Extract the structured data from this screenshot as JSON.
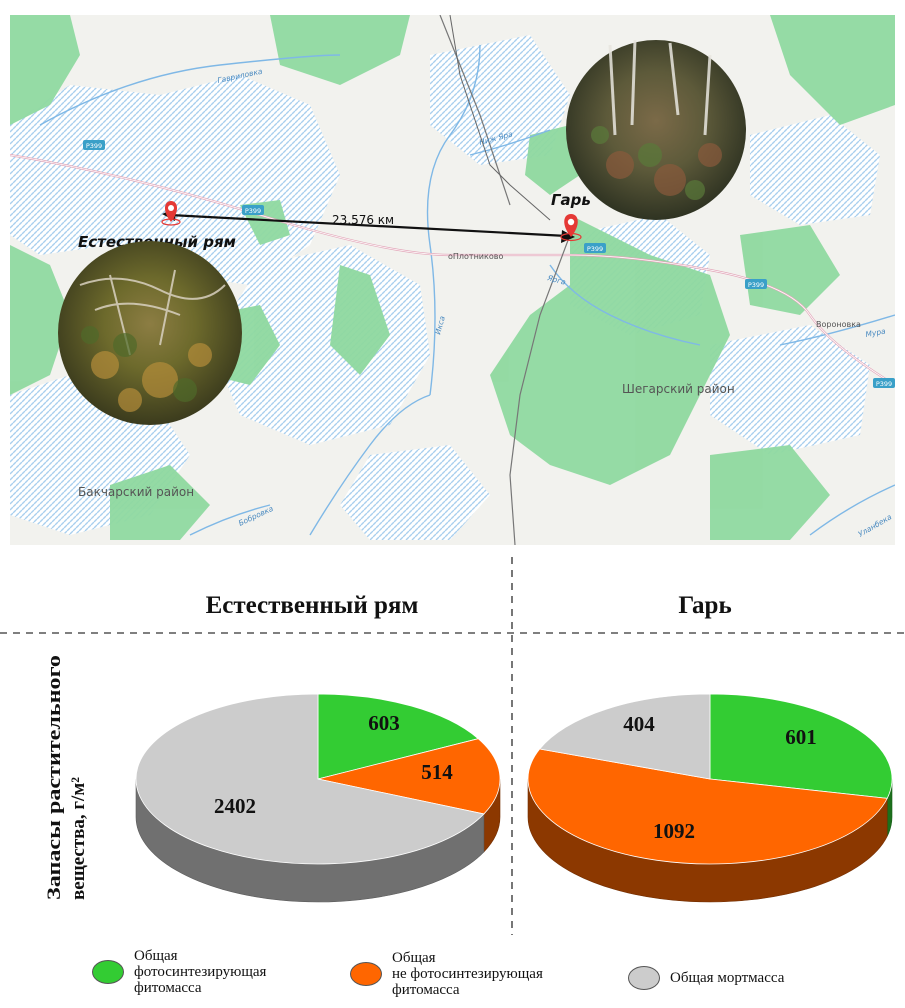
{
  "map": {
    "site_natural": "Естественный рям",
    "site_burn": "Гарь",
    "distance": "23,576 км",
    "place_labels": {
      "plotnikovo": "оПлотниково",
      "voronovka": "Вороновка",
      "shegarsky": "Шегарский район",
      "bakcharsky": "Бакчарский район"
    },
    "river_labels": {
      "gavrilovka": "Гавриловка",
      "nizh_yara": "Ниж Яра",
      "yarga": "Ярга",
      "inga": "Икса",
      "murga": "Мура",
      "bobrovka": "Бобровка",
      "ulandeka": "Уланбека"
    },
    "road_shields": [
      "Р399",
      "Р399",
      "Р399",
      "Р399",
      "Р399"
    ]
  },
  "chart_data": [
    {
      "type": "pie",
      "title": "Естественный рям",
      "labels": [
        "Общая фотосинтезирующая фитомасса",
        "Общая не фотосинтезирующая фитомасса",
        "Общая мортмасса"
      ],
      "values": [
        603,
        514,
        2402
      ],
      "colors": [
        "#33cc33",
        "#ff6600",
        "#cccccc"
      ]
    },
    {
      "type": "pie",
      "title": "Гарь",
      "labels": [
        "Общая фотосинтезирующая фитомасса",
        "Общая не фотосинтезирующая фитомасса",
        "Общая мортмасса"
      ],
      "values": [
        601,
        1092,
        404
      ],
      "colors": [
        "#33cc33",
        "#ff6600",
        "#cccccc"
      ]
    }
  ],
  "ylabel_line1": "Запасы растительного",
  "ylabel_line2": "вещества, г/м²",
  "legend": [
    {
      "lines": [
        "Общая",
        "фотосинтезирующая",
        "фитомасса"
      ],
      "color": "#33cc33"
    },
    {
      "lines": [
        "Общая",
        "не фотосинтезирующая",
        "фитомасса"
      ],
      "color": "#ff6600"
    },
    {
      "lines": [
        "Общая мортмасса"
      ],
      "color": "#cccccc"
    }
  ]
}
